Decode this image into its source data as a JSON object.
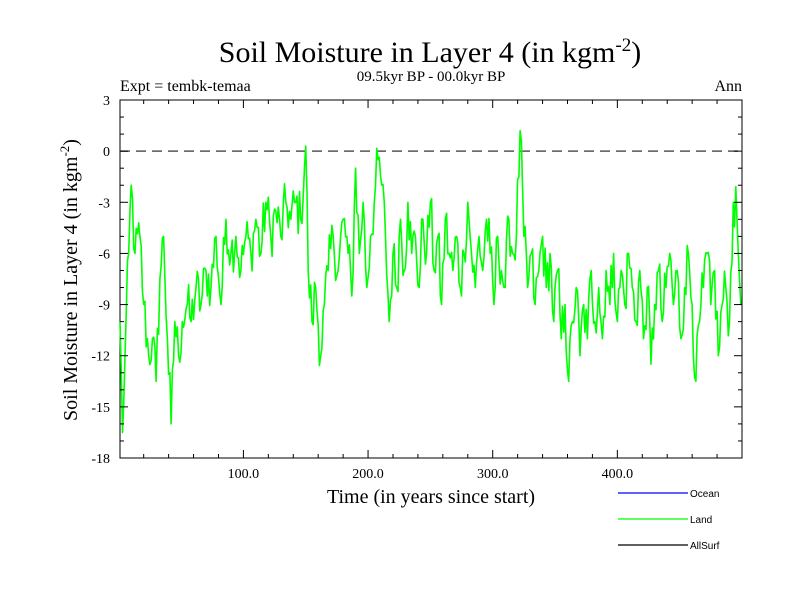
{
  "chart_data": {
    "type": "line",
    "title": "Soil Moisture in Layer 4 (in kgm",
    "title_sup": "-2",
    "title_close": ")",
    "subtitle": "09.5kyr BP - 00.0kyr BP",
    "expt_label": "Expt = tembk-temaa",
    "season": "Ann",
    "xlabel": "Time (in years since start)",
    "ylabel": "Soil Moisture in Layer 4 (in kgm",
    "ylabel_sup": "-2",
    "ylabel_close": ")",
    "xlim": [
      1,
      500
    ],
    "ylim": [
      -18,
      3
    ],
    "x_ticks": [
      100,
      200,
      300,
      400
    ],
    "x_tick_labels": [
      "100.0",
      "200.0",
      "300.0",
      "400.0"
    ],
    "y_ticks": [
      3,
      0,
      -3,
      -6,
      -9,
      -12,
      -15,
      -18
    ],
    "y_tick_labels": [
      "3",
      "0",
      "-3",
      "-6",
      "-9",
      "-12",
      "-15",
      "-18"
    ],
    "reference_line": 0,
    "legend": [
      {
        "name": "Ocean",
        "color": "#0000ff"
      },
      {
        "name": "Land",
        "color": "#00ff00"
      },
      {
        "name": "AllSurf",
        "color": "#000000"
      }
    ],
    "series": [
      {
        "name": "Land",
        "color": "#00ff00",
        "key_points": [
          [
            1,
            -10
          ],
          [
            3,
            -16.5
          ],
          [
            5,
            -12
          ],
          [
            8,
            -6
          ],
          [
            10,
            -2
          ],
          [
            13,
            -6
          ],
          [
            17,
            -5
          ],
          [
            20,
            -9
          ],
          [
            24,
            -12
          ],
          [
            27,
            -11
          ],
          [
            30,
            -13.5
          ],
          [
            33,
            -7.5
          ],
          [
            36,
            -5
          ],
          [
            39,
            -11
          ],
          [
            42,
            -16
          ],
          [
            45,
            -10
          ],
          [
            48,
            -12
          ],
          [
            51,
            -10
          ],
          [
            55,
            -9
          ],
          [
            58,
            -10
          ],
          [
            62,
            -8
          ],
          [
            66,
            -9
          ],
          [
            70,
            -7
          ],
          [
            74,
            -8
          ],
          [
            78,
            -5
          ],
          [
            82,
            -9
          ],
          [
            86,
            -4
          ],
          [
            90,
            -6
          ],
          [
            94,
            -5
          ],
          [
            98,
            -7
          ],
          [
            102,
            -5
          ],
          [
            106,
            -6
          ],
          [
            110,
            -4
          ],
          [
            114,
            -6
          ],
          [
            118,
            -3
          ],
          [
            122,
            -5
          ],
          [
            126,
            -3.5
          ],
          [
            130,
            -5
          ],
          [
            134,
            -3
          ],
          [
            138,
            -4
          ],
          [
            142,
            -3
          ],
          [
            146,
            -4
          ],
          [
            150,
            0.3
          ],
          [
            152,
            -7
          ],
          [
            155,
            -10
          ],
          [
            158,
            -8
          ],
          [
            162,
            -12
          ],
          [
            165,
            -9
          ],
          [
            168,
            -7
          ],
          [
            172,
            -5
          ],
          [
            176,
            -7
          ],
          [
            180,
            -4
          ],
          [
            184,
            -6
          ],
          [
            187,
            -8.5
          ],
          [
            190,
            -1
          ],
          [
            193,
            -6
          ],
          [
            196,
            -3
          ],
          [
            199,
            -8
          ],
          [
            202,
            -5
          ],
          [
            205,
            -3
          ],
          [
            208,
            -0.5
          ],
          [
            211,
            -2
          ],
          [
            214,
            -5
          ],
          [
            217,
            -10
          ],
          [
            220,
            -6
          ],
          [
            223,
            -8
          ],
          [
            226,
            -4
          ],
          [
            229,
            -7
          ],
          [
            232,
            -3
          ],
          [
            235,
            -6
          ],
          [
            238,
            -5
          ],
          [
            241,
            -8
          ],
          [
            244,
            -4
          ],
          [
            247,
            -6
          ],
          [
            250,
            -3
          ],
          [
            253,
            -7
          ],
          [
            256,
            -5
          ],
          [
            259,
            -9
          ],
          [
            262,
            -4
          ],
          [
            265,
            -6
          ],
          [
            268,
            -7
          ],
          [
            271,
            -5
          ],
          [
            274,
            -8
          ],
          [
            277,
            -6
          ],
          [
            280,
            -3
          ],
          [
            283,
            -6
          ],
          [
            286,
            -8
          ],
          [
            289,
            -5
          ],
          [
            292,
            -7
          ],
          [
            295,
            -4
          ],
          [
            298,
            -6
          ],
          [
            301,
            -9
          ],
          [
            304,
            -5
          ],
          [
            307,
            -7
          ],
          [
            310,
            -8
          ],
          [
            313,
            -4
          ],
          [
            316,
            -6
          ],
          [
            319,
            -5
          ],
          [
            322,
            1.2
          ],
          [
            325,
            -5
          ],
          [
            328,
            -8
          ],
          [
            331,
            -6
          ],
          [
            334,
            -9
          ],
          [
            337,
            -7
          ],
          [
            340,
            -5
          ],
          [
            343,
            -8
          ],
          [
            346,
            -6
          ],
          [
            349,
            -10
          ],
          [
            352,
            -7
          ],
          [
            355,
            -11
          ],
          [
            358,
            -9
          ],
          [
            361,
            -13.5
          ],
          [
            364,
            -10
          ],
          [
            367,
            -8
          ],
          [
            370,
            -12
          ],
          [
            373,
            -9
          ],
          [
            376,
            -11
          ],
          [
            379,
            -7
          ],
          [
            382,
            -10
          ],
          [
            385,
            -8
          ],
          [
            388,
            -11
          ],
          [
            391,
            -7
          ],
          [
            394,
            -9
          ],
          [
            397,
            -6
          ],
          [
            400,
            -10
          ],
          [
            403,
            -7
          ],
          [
            406,
            -9
          ],
          [
            409,
            -6
          ],
          [
            412,
            -8
          ],
          [
            415,
            -10
          ],
          [
            418,
            -7
          ],
          [
            421,
            -11
          ],
          [
            424,
            -8
          ],
          [
            427,
            -12.5
          ],
          [
            430,
            -9
          ],
          [
            433,
            -7
          ],
          [
            436,
            -10
          ],
          [
            439,
            -8
          ],
          [
            442,
            -6
          ],
          [
            445,
            -9
          ],
          [
            448,
            -7
          ],
          [
            451,
            -11
          ],
          [
            454,
            -8
          ],
          [
            457,
            -6
          ],
          [
            460,
            -9
          ],
          [
            463,
            -13.5
          ],
          [
            466,
            -10
          ],
          [
            469,
            -8
          ],
          [
            472,
            -6
          ],
          [
            475,
            -9
          ],
          [
            478,
            -7
          ],
          [
            481,
            -12
          ],
          [
            484,
            -9
          ],
          [
            487,
            -8
          ],
          [
            490,
            -10
          ],
          [
            493,
            -3
          ],
          [
            496,
            -4
          ],
          [
            499,
            -9
          ]
        ]
      }
    ]
  }
}
